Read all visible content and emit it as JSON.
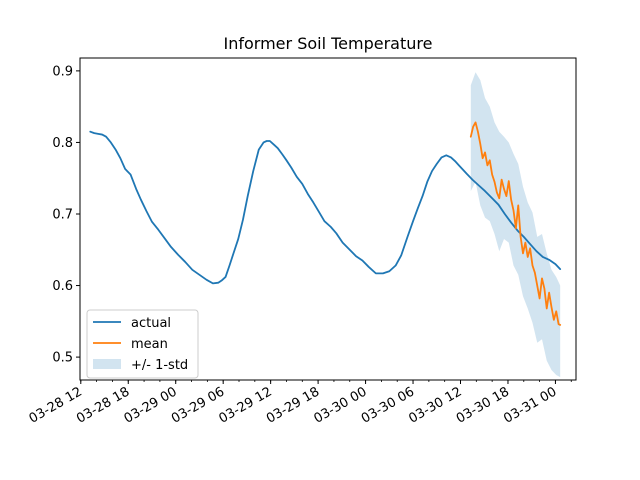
{
  "chart_data": {
    "type": "line",
    "title": "Informer Soil Temperature",
    "xlabel": "",
    "ylabel": "",
    "x_ticks": [
      {
        "label": "03-28 12",
        "hour": 12
      },
      {
        "label": "03-28 18",
        "hour": 18
      },
      {
        "label": "03-29 00",
        "hour": 24
      },
      {
        "label": "03-29 06",
        "hour": 30
      },
      {
        "label": "03-29 12",
        "hour": 36
      },
      {
        "label": "03-29 18",
        "hour": 42
      },
      {
        "label": "03-30 00",
        "hour": 48
      },
      {
        "label": "03-30 06",
        "hour": 54
      },
      {
        "label": "03-30 12",
        "hour": 60
      },
      {
        "label": "03-30 18",
        "hour": 66
      },
      {
        "label": "03-31 00",
        "hour": 72
      }
    ],
    "y_ticks": [
      0.5,
      0.6,
      0.7,
      0.8,
      0.9
    ],
    "xlim": [
      11.9,
      74.6
    ],
    "ylim": [
      0.468,
      0.918
    ],
    "grid": false,
    "legend": "lower-left",
    "legend_entries": [
      "actual",
      "mean",
      "+/- 1-std"
    ],
    "colors": {
      "actual": "#1f77b4",
      "mean": "#ff7f0e",
      "band": "#1f77b4"
    },
    "series": [
      {
        "name": "actual",
        "style": "line",
        "x": [
          13.2,
          13.7,
          14.2,
          14.7,
          15.2,
          15.8,
          16.4,
          17.0,
          17.6,
          18.3,
          19.0,
          19.6,
          20.3,
          21.0,
          21.8,
          22.6,
          23.4,
          24.3,
          25.2,
          26.1,
          27.0,
          27.9,
          28.7,
          29.4,
          29.8,
          30.3,
          30.8,
          31.3,
          31.9,
          32.5,
          33.1,
          33.8,
          34.5,
          35.1,
          35.5,
          35.9,
          36.4,
          36.9,
          37.5,
          38.0,
          38.6,
          39.3,
          40.0,
          40.7,
          41.4,
          42.1,
          42.8,
          43.6,
          44.3,
          45.1,
          45.9,
          46.8,
          47.6,
          48.4,
          49.3,
          50.2,
          51.0,
          51.8,
          52.5,
          53.3,
          54.0,
          54.6,
          55.2,
          55.8,
          56.4,
          57.0,
          57.6,
          58.2,
          58.8,
          59.3,
          59.8,
          60.3,
          60.8,
          61.5,
          62.3,
          63.1,
          64.0,
          64.8,
          65.6,
          66.4,
          67.2,
          68.0,
          68.8,
          69.6,
          70.4,
          71.2,
          72.0,
          72.6
        ],
        "values": [
          0.815,
          0.813,
          0.812,
          0.811,
          0.808,
          0.8,
          0.79,
          0.778,
          0.763,
          0.755,
          0.735,
          0.72,
          0.704,
          0.689,
          0.678,
          0.666,
          0.654,
          0.643,
          0.633,
          0.622,
          0.615,
          0.608,
          0.603,
          0.604,
          0.607,
          0.612,
          0.628,
          0.645,
          0.665,
          0.692,
          0.725,
          0.76,
          0.79,
          0.8,
          0.802,
          0.802,
          0.797,
          0.792,
          0.783,
          0.775,
          0.765,
          0.752,
          0.742,
          0.728,
          0.716,
          0.703,
          0.69,
          0.682,
          0.673,
          0.66,
          0.651,
          0.641,
          0.635,
          0.626,
          0.617,
          0.617,
          0.62,
          0.628,
          0.642,
          0.668,
          0.69,
          0.708,
          0.725,
          0.745,
          0.76,
          0.77,
          0.779,
          0.782,
          0.779,
          0.774,
          0.768,
          0.762,
          0.756,
          0.748,
          0.74,
          0.732,
          0.722,
          0.713,
          0.7,
          0.688,
          0.677,
          0.668,
          0.658,
          0.648,
          0.64,
          0.636,
          0.63,
          0.623
        ]
      },
      {
        "name": "mean",
        "style": "line",
        "x": [
          61.3,
          61.6,
          61.9,
          62.2,
          62.5,
          62.8,
          63.1,
          63.4,
          63.7,
          64.0,
          64.3,
          64.6,
          64.9,
          65.2,
          65.5,
          65.8,
          66.1,
          66.4,
          66.7,
          67.0,
          67.3,
          67.6,
          67.9,
          68.2,
          68.5,
          68.8,
          69.1,
          69.4,
          69.7,
          70.0,
          70.3,
          70.6,
          70.9,
          71.2,
          71.5,
          71.8,
          72.1,
          72.4,
          72.6
        ],
        "values": [
          0.808,
          0.822,
          0.828,
          0.815,
          0.798,
          0.778,
          0.786,
          0.768,
          0.775,
          0.755,
          0.745,
          0.73,
          0.722,
          0.748,
          0.735,
          0.725,
          0.746,
          0.72,
          0.705,
          0.68,
          0.712,
          0.668,
          0.645,
          0.66,
          0.64,
          0.652,
          0.628,
          0.618,
          0.6,
          0.582,
          0.61,
          0.596,
          0.568,
          0.59,
          0.57,
          0.552,
          0.564,
          0.546,
          0.545
        ]
      },
      {
        "name": "+/- 1-std",
        "style": "band",
        "x": [
          61.3,
          61.9,
          62.5,
          63.1,
          63.7,
          64.3,
          64.9,
          65.5,
          66.1,
          66.7,
          67.3,
          67.9,
          68.5,
          69.1,
          69.7,
          70.3,
          70.9,
          71.5,
          72.1,
          72.6
        ],
        "upper": [
          0.88,
          0.898,
          0.887,
          0.862,
          0.85,
          0.828,
          0.815,
          0.808,
          0.8,
          0.784,
          0.77,
          0.738,
          0.716,
          0.702,
          0.668,
          0.672,
          0.645,
          0.622,
          0.612,
          0.6
        ],
        "lower": [
          0.732,
          0.745,
          0.712,
          0.695,
          0.69,
          0.672,
          0.648,
          0.665,
          0.66,
          0.628,
          0.615,
          0.585,
          0.568,
          0.548,
          0.52,
          0.525,
          0.495,
          0.482,
          0.475,
          0.472
        ]
      }
    ]
  }
}
